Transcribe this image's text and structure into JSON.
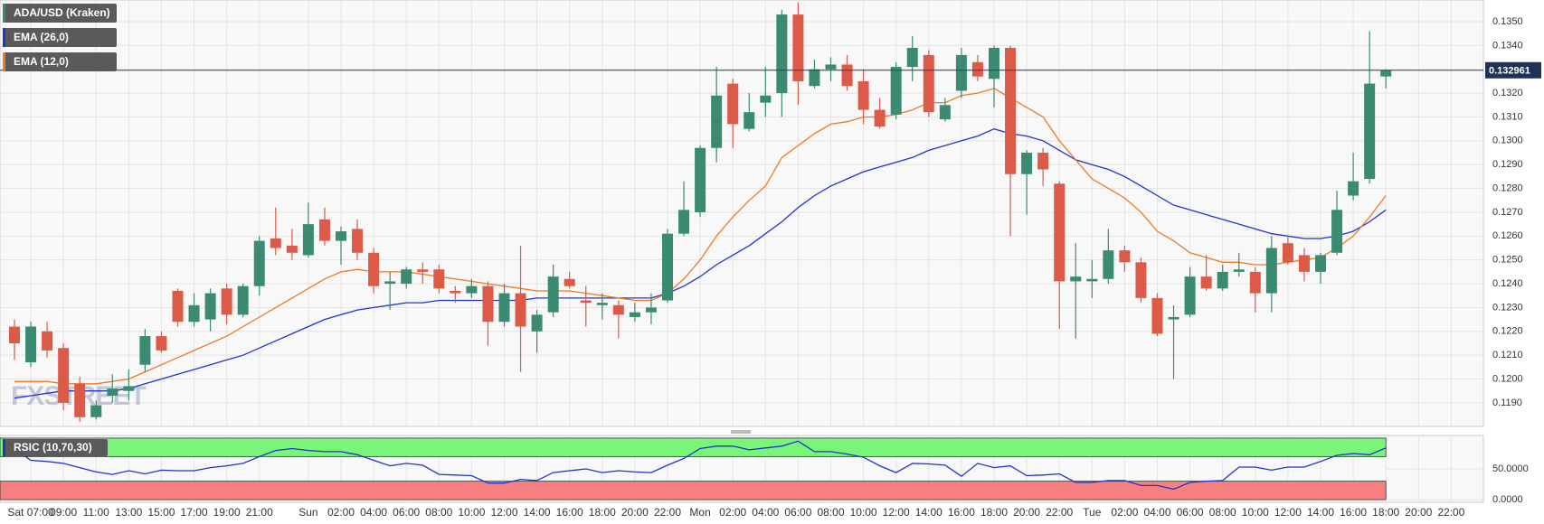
{
  "chart_data": [
    {
      "type": "candlestick",
      "title": "ADA/USD (Kraken)",
      "watermark": "FXSTREET",
      "up_color": "#3b8a72",
      "down_color": "#dc5a48",
      "open": [
        0.1222,
        0.1207,
        0.122,
        0.1213,
        0.1198,
        0.1184,
        0.1193,
        0.1195,
        0.1206,
        0.1218,
        0.1237,
        0.1224,
        0.1225,
        0.1238,
        0.1227,
        0.1239,
        0.1259,
        0.1256,
        0.1252,
        0.1267,
        0.1258,
        0.1263,
        0.1253,
        0.124,
        0.124,
        0.1246,
        0.1246,
        0.1237,
        0.1236,
        0.1239,
        0.1224,
        0.1236,
        0.122,
        0.1228,
        0.1242,
        0.1233,
        0.1231,
        0.1231,
        0.1226,
        0.1228,
        0.1233,
        0.1261,
        0.127,
        0.1297,
        0.1324,
        0.1305,
        0.1316,
        0.132,
        0.1353,
        0.1323,
        0.133,
        0.1332,
        0.1325,
        0.1313,
        0.1311,
        0.1331,
        0.1336,
        0.1309,
        0.1321,
        0.1333,
        0.1326,
        0.1339,
        0.1286,
        0.1295,
        0.1282,
        0.1241,
        0.1241,
        0.1242,
        0.1254,
        0.1249,
        0.1234,
        0.1225,
        0.1227,
        0.1243,
        0.1238,
        0.1245,
        0.1245,
        0.1236,
        0.1257,
        0.1252,
        0.1245,
        0.1253,
        0.1277,
        0.1284,
        0.1327,
        null,
        null,
        null,
        null
      ],
      "high": [
        0.1225,
        0.1224,
        0.1224,
        0.1215,
        0.1201,
        0.1191,
        0.1202,
        0.1204,
        0.1221,
        0.122,
        0.1238,
        0.1236,
        0.1238,
        0.124,
        0.124,
        0.126,
        0.1272,
        0.1263,
        0.1274,
        0.1272,
        0.1264,
        0.1267,
        0.1255,
        0.1245,
        0.1247,
        0.1249,
        0.1248,
        0.1239,
        0.1242,
        0.1241,
        0.124,
        0.1256,
        0.1229,
        0.1248,
        0.1245,
        0.1239,
        0.1236,
        0.1233,
        0.1232,
        0.1236,
        0.1263,
        0.1283,
        0.1298,
        0.1331,
        0.1326,
        0.132,
        0.1331,
        0.1355,
        0.1358,
        0.1334,
        0.1335,
        0.1336,
        0.133,
        0.1318,
        0.1333,
        0.1344,
        0.1338,
        0.1318,
        0.1339,
        0.1336,
        0.134,
        0.134,
        0.1296,
        0.1297,
        0.1283,
        0.1257,
        0.125,
        0.1263,
        0.1256,
        0.1251,
        0.1236,
        0.1231,
        0.1247,
        0.1252,
        0.1248,
        0.1253,
        0.1247,
        0.126,
        0.126,
        0.1255,
        0.1253,
        0.1279,
        0.1295,
        0.1346,
        0.133,
        null,
        null,
        null,
        null
      ],
      "low": [
        0.1208,
        0.1205,
        0.1209,
        0.1187,
        0.1182,
        0.1183,
        0.119,
        0.1191,
        0.1203,
        0.1211,
        0.1222,
        0.1222,
        0.122,
        0.1223,
        0.1226,
        0.1235,
        0.1252,
        0.125,
        0.1251,
        0.1256,
        0.1248,
        0.125,
        0.1236,
        0.1229,
        0.1238,
        0.124,
        0.1236,
        0.1232,
        0.1234,
        0.1214,
        0.1222,
        0.1203,
        0.1211,
        0.1226,
        0.1238,
        0.1222,
        0.1225,
        0.1217,
        0.1224,
        0.1223,
        0.1232,
        0.126,
        0.1268,
        0.1291,
        0.1297,
        0.1304,
        0.131,
        0.131,
        0.1315,
        0.1322,
        0.1325,
        0.1321,
        0.1307,
        0.1305,
        0.1309,
        0.1325,
        0.131,
        0.1308,
        0.1318,
        0.1325,
        0.1314,
        0.126,
        0.1269,
        0.1281,
        0.1221,
        0.1217,
        0.1234,
        0.124,
        0.1245,
        0.1232,
        0.1218,
        0.12,
        0.1226,
        0.1237,
        0.1237,
        0.1243,
        0.1228,
        0.1228,
        0.1248,
        0.1241,
        0.124,
        0.1252,
        0.1275,
        0.1282,
        0.1322,
        null,
        null,
        null,
        null
      ],
      "close": [
        0.1215,
        0.1222,
        0.1212,
        0.119,
        0.1184,
        0.1189,
        0.1196,
        0.1197,
        0.1218,
        0.1212,
        0.1224,
        0.1231,
        0.1236,
        0.1227,
        0.1239,
        0.1258,
        0.1255,
        0.1253,
        0.1265,
        0.1258,
        0.1262,
        0.1253,
        0.1239,
        0.1241,
        0.1246,
        0.1245,
        0.1238,
        0.1236,
        0.1239,
        0.1224,
        0.1236,
        0.1222,
        0.1227,
        0.1243,
        0.1239,
        0.1232,
        0.1232,
        0.1227,
        0.1228,
        0.123,
        0.1261,
        0.1271,
        0.1297,
        0.1319,
        0.1307,
        0.1312,
        0.1319,
        0.1353,
        0.1325,
        0.133,
        0.1332,
        0.1323,
        0.1313,
        0.1306,
        0.1331,
        0.1339,
        0.1312,
        0.1315,
        0.1336,
        0.1327,
        0.1339,
        0.1286,
        0.1295,
        0.1288,
        0.1241,
        0.1243,
        0.1242,
        0.1254,
        0.1249,
        0.1234,
        0.1219,
        0.1226,
        0.1243,
        0.1238,
        0.1245,
        0.1246,
        0.1236,
        0.1255,
        0.1249,
        0.1245,
        0.1252,
        0.1271,
        0.1283,
        0.1324,
        0.132961,
        null,
        null,
        null,
        null
      ],
      "series": [
        {
          "name": "EMA (26,0)",
          "color": "#2233cc",
          "values": [
            0.1192,
            0.1193,
            0.1194,
            0.1195,
            0.1195,
            0.1195,
            0.1195,
            0.1196,
            0.1198,
            0.12,
            0.1202,
            0.1204,
            0.1206,
            0.1208,
            0.121,
            0.1213,
            0.1216,
            0.1219,
            0.1222,
            0.1225,
            0.1227,
            0.1229,
            0.123,
            0.1231,
            0.1232,
            0.1232,
            0.1233,
            0.1233,
            0.1233,
            0.1233,
            0.1233,
            0.1233,
            0.1234,
            0.1234,
            0.1234,
            0.1234,
            0.1234,
            0.1234,
            0.1234,
            0.1234,
            0.1236,
            0.1239,
            0.1243,
            0.1248,
            0.1252,
            0.1256,
            0.1261,
            0.1266,
            0.1272,
            0.1277,
            0.1281,
            0.1284,
            0.1287,
            0.1289,
            0.1291,
            0.1293,
            0.1296,
            0.1298,
            0.13,
            0.1302,
            0.1305,
            0.1303,
            0.1302,
            0.13,
            0.1296,
            0.1292,
            0.129,
            0.1288,
            0.1285,
            0.1281,
            0.1277,
            0.1273,
            0.1271,
            0.1269,
            0.1267,
            0.1265,
            0.1263,
            0.1261,
            0.126,
            0.1259,
            0.1259,
            0.126,
            0.1262,
            0.1266,
            0.1271,
            null,
            null,
            null,
            null
          ]
        },
        {
          "name": "EMA (12,0)",
          "color": "#ee7a22",
          "values": [
            0.1199,
            0.1199,
            0.1199,
            0.1198,
            0.1198,
            0.1198,
            0.1199,
            0.12,
            0.1203,
            0.1206,
            0.1209,
            0.1212,
            0.1215,
            0.1218,
            0.1222,
            0.1226,
            0.123,
            0.1234,
            0.1238,
            0.1242,
            0.1245,
            0.1246,
            0.1245,
            0.1245,
            0.1245,
            0.1244,
            0.1243,
            0.1242,
            0.1241,
            0.124,
            0.1239,
            0.1238,
            0.1237,
            0.1237,
            0.1237,
            0.1236,
            0.1235,
            0.1234,
            0.1233,
            0.1233,
            0.1236,
            0.1242,
            0.125,
            0.126,
            0.1268,
            0.1275,
            0.1281,
            0.1293,
            0.1298,
            0.1303,
            0.1307,
            0.1308,
            0.131,
            0.131,
            0.1311,
            0.1313,
            0.1316,
            0.1316,
            0.1319,
            0.132,
            0.1322,
            0.1318,
            0.1314,
            0.131,
            0.13,
            0.1292,
            0.1284,
            0.128,
            0.1276,
            0.127,
            0.1262,
            0.1258,
            0.1253,
            0.1251,
            0.1249,
            0.1249,
            0.1248,
            0.1248,
            0.1249,
            0.125,
            0.1251,
            0.1255,
            0.126,
            0.1268,
            0.1277,
            null,
            null,
            null,
            null
          ]
        }
      ],
      "ylim": [
        0.11801,
        0.13591
      ],
      "yticks": [
        {
          "value": 0.119,
          "label": "0.1190"
        },
        {
          "value": 0.12,
          "label": "0.1200"
        },
        {
          "value": 0.121,
          "label": "0.1210"
        },
        {
          "value": 0.122,
          "label": "0.1220"
        },
        {
          "value": 0.123,
          "label": "0.1230"
        },
        {
          "value": 0.124,
          "label": "0.1240"
        },
        {
          "value": 0.125,
          "label": "0.1250"
        },
        {
          "value": 0.126,
          "label": "0.1260"
        },
        {
          "value": 0.127,
          "label": "0.1270"
        },
        {
          "value": 0.128,
          "label": "0.1280"
        },
        {
          "value": 0.129,
          "label": "0.1290"
        },
        {
          "value": 0.13,
          "label": "0.1300"
        },
        {
          "value": 0.131,
          "label": "0.1310"
        },
        {
          "value": 0.132,
          "label": "0.1320"
        },
        {
          "value": 0.133,
          "label": "0.1330"
        },
        {
          "value": 0.134,
          "label": "0.1340"
        },
        {
          "value": 0.135,
          "label": "0.1350"
        }
      ],
      "last_price": 0.132961,
      "grid": true
    },
    {
      "type": "line",
      "series": [
        {
          "name": "RSIC (10,70,30)",
          "color": "#2233cc",
          "values": [
            83,
            64,
            62,
            59,
            52,
            45,
            41,
            47,
            42,
            48,
            47,
            47,
            52,
            55,
            59,
            70,
            80,
            83,
            80,
            78,
            78,
            73,
            64,
            55,
            59,
            56,
            41,
            40,
            39,
            27,
            27,
            33,
            31,
            44,
            47,
            50,
            44,
            47,
            45,
            44,
            56,
            67,
            83,
            87,
            87,
            81,
            84,
            87,
            95,
            78,
            78,
            74,
            69,
            55,
            44,
            59,
            58,
            56,
            38,
            59,
            52,
            55,
            39,
            40,
            42,
            28,
            28,
            31,
            31,
            23,
            23,
            17,
            28,
            30,
            31,
            53,
            53,
            48,
            53,
            53,
            62,
            72,
            75,
            73,
            84,
            null,
            null,
            null,
            null
          ]
        }
      ],
      "bands": [
        {
          "from": 70,
          "to": 100,
          "color": "#7af57a"
        },
        {
          "from": 0,
          "to": 30,
          "color": "#f77f7f"
        }
      ],
      "ylim": [
        -4.3,
        104.3
      ],
      "yticks": [
        {
          "value": 0,
          "label": "0.0000"
        },
        {
          "value": 50,
          "label": "50.0000"
        }
      ],
      "categories": [
        null,
        "Sat 07:00",
        null,
        "09:00",
        null,
        "11:00",
        null,
        "13:00",
        null,
        "15:00",
        null,
        "17:00",
        null,
        "19:00",
        null,
        "21:00",
        null,
        null,
        "Sun",
        null,
        "02:00",
        null,
        "04:00",
        null,
        "06:00",
        null,
        "08:00",
        null,
        "10:00",
        null,
        "12:00",
        null,
        "14:00",
        null,
        "16:00",
        null,
        "18:00",
        null,
        "20:00",
        null,
        "22:00",
        null,
        "Mon",
        null,
        "02:00",
        null,
        "04:00",
        null,
        "06:00",
        null,
        "08:00",
        null,
        "10:00",
        null,
        "12:00",
        null,
        "14:00",
        null,
        "16:00",
        null,
        "18:00",
        null,
        "20:00",
        null,
        "22:00",
        null,
        "Tue",
        null,
        "02:00",
        null,
        "04:00",
        null,
        "06:00",
        null,
        "08:00",
        null,
        "10:00",
        null,
        "12:00",
        null,
        "14:00",
        null,
        "16:00",
        null,
        "18:00",
        null,
        "20:00",
        null,
        "22:00"
      ],
      "grid": true
    }
  ]
}
